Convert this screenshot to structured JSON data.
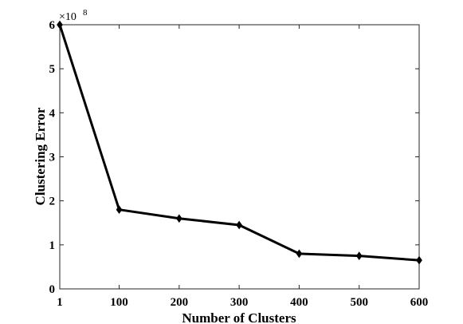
{
  "chart_data": {
    "type": "line",
    "title": "",
    "xlabel": "Number of Clusters",
    "ylabel": "Clustering Error",
    "x": [
      1,
      100,
      200,
      300,
      400,
      500,
      600
    ],
    "series": [
      {
        "values": [
          600000000,
          180000000,
          160000000,
          145000000,
          80000000,
          75000000,
          65000000
        ],
        "color": "#000000",
        "marker": "diamond"
      }
    ],
    "xlim": [
      1,
      600
    ],
    "ylim": [
      0,
      600000000
    ],
    "x_ticks": [
      "1",
      "100",
      "200",
      "300",
      "400",
      "500",
      "600"
    ],
    "y_ticks": [
      "0",
      "1",
      "2",
      "3",
      "4",
      "5",
      "6"
    ],
    "y_multiplier": {
      "base": "×10",
      "exponent": "8"
    },
    "grid": false,
    "legend": "none"
  }
}
